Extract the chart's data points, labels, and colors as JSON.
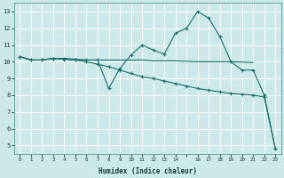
{
  "xlabel": "Humidex (Indice chaleur)",
  "ylabel": "",
  "bg_color": "#cce8e8",
  "grid_color": "#ffffff",
  "line_color": "#1a6e6a",
  "xlim": [
    -0.5,
    23.5
  ],
  "ylim": [
    4.5,
    13.5
  ],
  "yticks": [
    5,
    6,
    7,
    8,
    9,
    10,
    11,
    12,
    13
  ],
  "xtick_positions": [
    0,
    1,
    2,
    3,
    4,
    5,
    6,
    7,
    8,
    9,
    10,
    11,
    12,
    13,
    14,
    15,
    16,
    17,
    18,
    19,
    20,
    21,
    22,
    23
  ],
  "xtick_labels": [
    "0",
    "1",
    "2",
    "3",
    "4",
    "5",
    "6",
    "7",
    "8",
    "9",
    "10",
    "11",
    "12",
    "13",
    "14",
    "",
    "16",
    "17",
    "18",
    "19",
    "20",
    "21",
    "22",
    "23"
  ],
  "line1_x": [
    0,
    1,
    2,
    3,
    4,
    5,
    6,
    7,
    8,
    9,
    10,
    11,
    12,
    13,
    14,
    15,
    16,
    17,
    18,
    19,
    20,
    21,
    22,
    23
  ],
  "line1_y": [
    10.3,
    10.1,
    10.1,
    10.2,
    10.2,
    10.15,
    10.1,
    10.1,
    8.4,
    9.6,
    10.4,
    11.0,
    10.7,
    10.45,
    11.7,
    12.0,
    13.0,
    12.6,
    11.5,
    10.0,
    9.5,
    9.5,
    8.0,
    4.8
  ],
  "line2_x": [
    0,
    1,
    2,
    3,
    4,
    5,
    6,
    7,
    8,
    9,
    10,
    11,
    12,
    13,
    14,
    15,
    16,
    17,
    18,
    19,
    20,
    21
  ],
  "line2_y": [
    10.3,
    10.1,
    10.1,
    10.2,
    10.15,
    10.1,
    10.1,
    10.1,
    10.1,
    10.1,
    10.1,
    10.1,
    10.05,
    10.05,
    10.05,
    10.02,
    10.0,
    10.0,
    10.0,
    10.0,
    9.98,
    9.95
  ],
  "line3_x": [
    0,
    1,
    2,
    3,
    4,
    5,
    6,
    7,
    8,
    9,
    10,
    11,
    12,
    13,
    14,
    15,
    16,
    17,
    18,
    19,
    20,
    21,
    22,
    23
  ],
  "line3_y": [
    10.3,
    10.1,
    10.1,
    10.2,
    10.15,
    10.1,
    10.0,
    9.85,
    9.7,
    9.5,
    9.3,
    9.1,
    9.0,
    8.85,
    8.7,
    8.55,
    8.4,
    8.3,
    8.2,
    8.1,
    8.05,
    8.0,
    7.9,
    4.8
  ]
}
